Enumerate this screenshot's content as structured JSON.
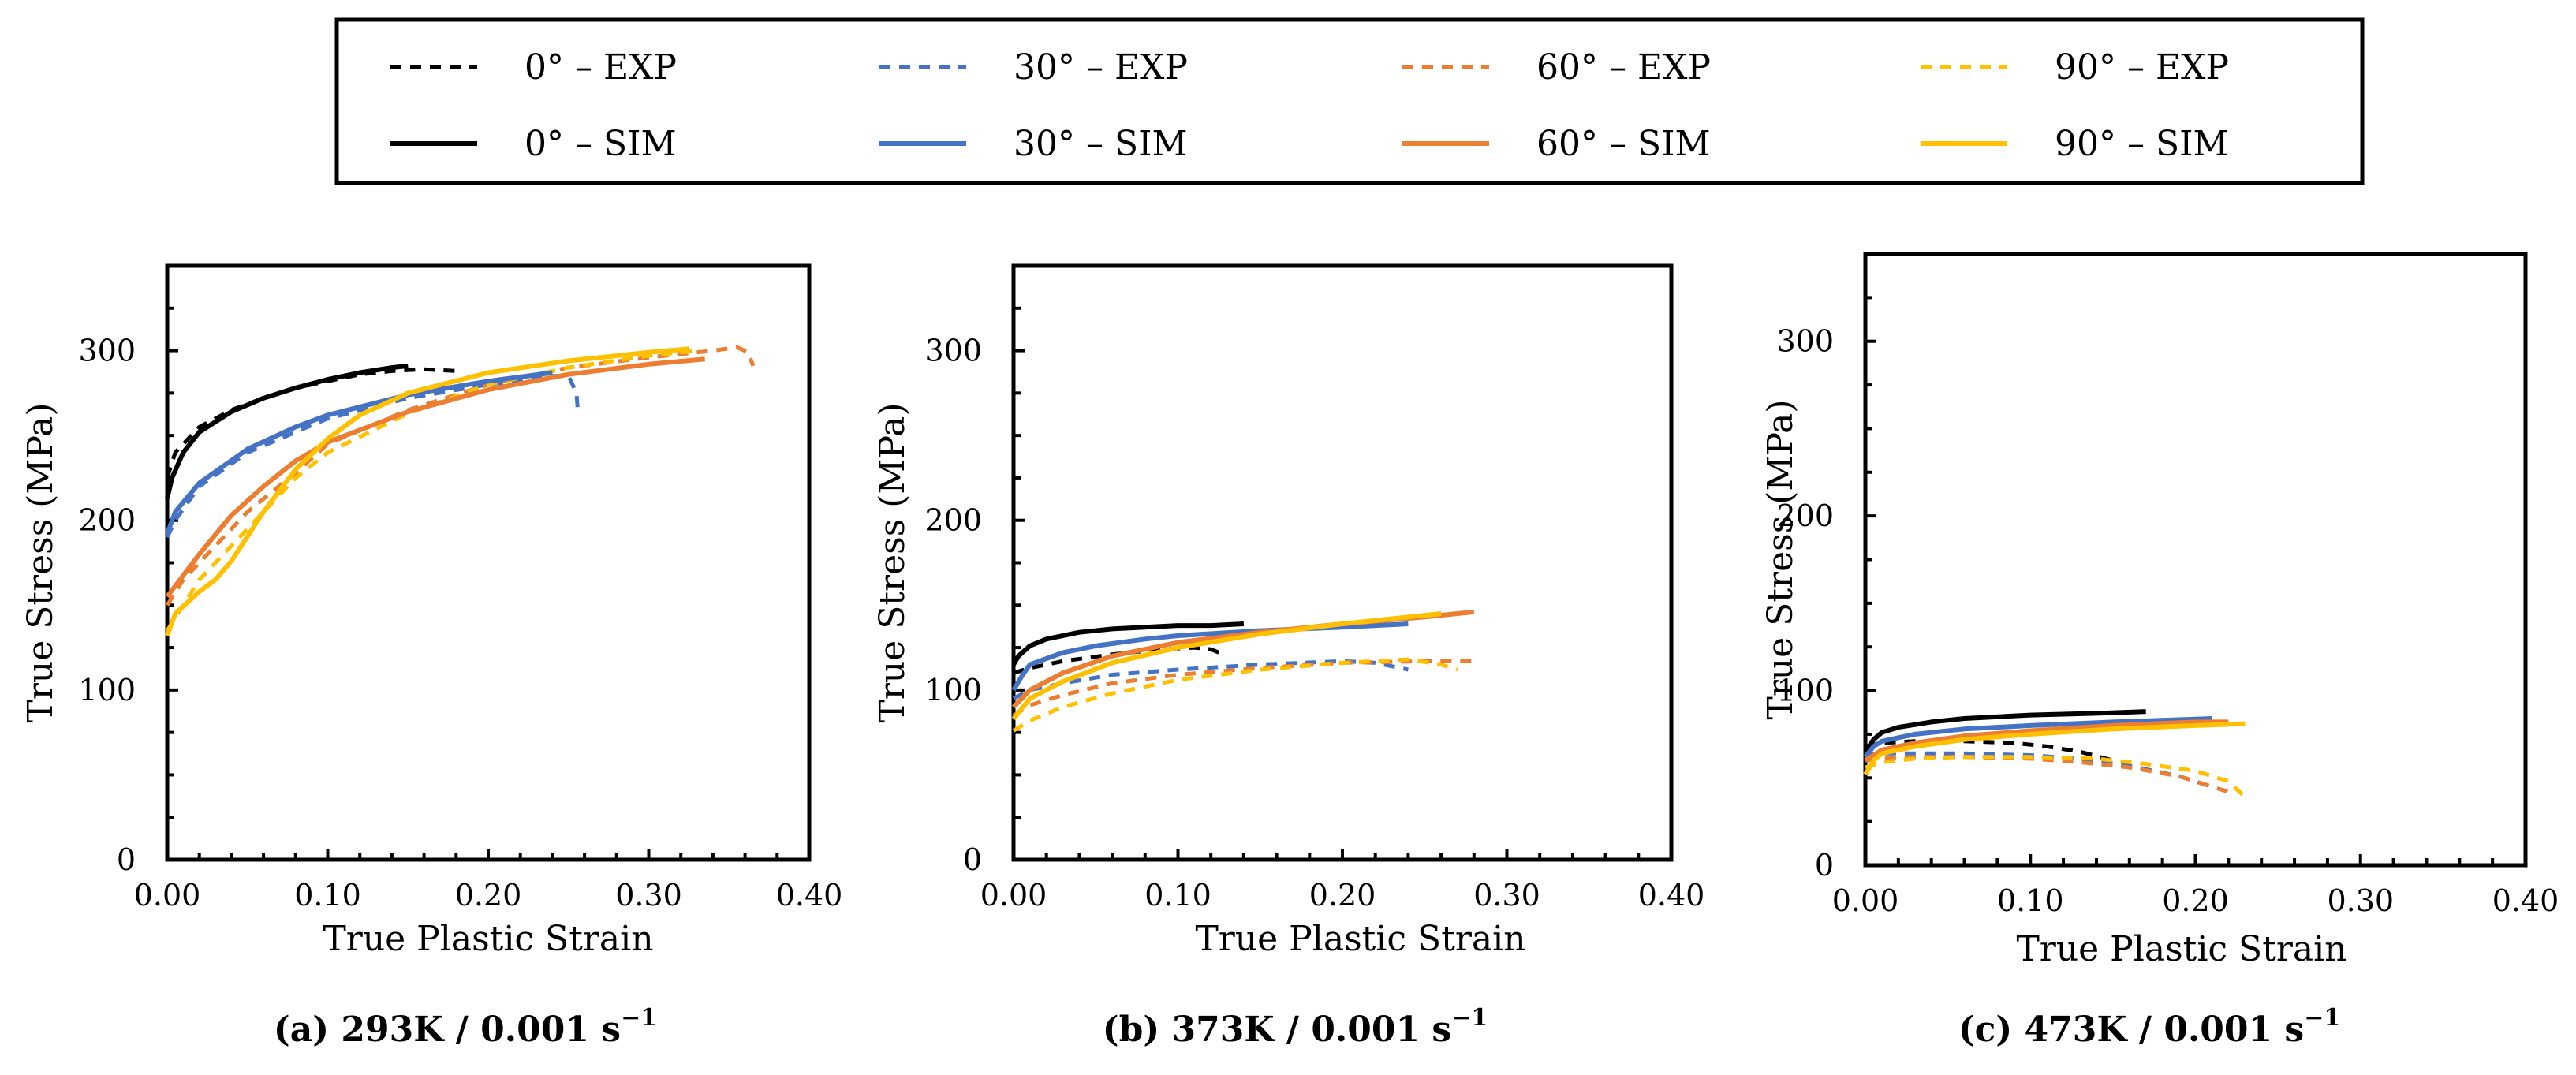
{
  "figure": {
    "legend": [
      {
        "label": "0° – EXP",
        "color": "#000000",
        "dash": true
      },
      {
        "label": "30° – EXP",
        "color": "#4472c4",
        "dash": true
      },
      {
        "label": "60° – EXP",
        "color": "#ed7d31",
        "dash": true
      },
      {
        "label": "90° – EXP",
        "color": "#ffc000",
        "dash": true
      },
      {
        "label": "0° – SIM",
        "color": "#000000",
        "dash": false
      },
      {
        "label": "30° – SIM",
        "color": "#4472c4",
        "dash": false
      },
      {
        "label": "60° – SIM",
        "color": "#ed7d31",
        "dash": false
      },
      {
        "label": "90° – SIM",
        "color": "#ffc000",
        "dash": false
      }
    ]
  },
  "chart_data": [
    {
      "type": "line",
      "caption": "(a) 293K / 0.001 s",
      "caption_sup": "−1",
      "xlabel": "True Plastic Strain",
      "ylabel": "True Stress (MPa)",
      "xlim": [
        0,
        0.4
      ],
      "ylim": [
        0,
        350
      ],
      "xticks": [
        "0.00",
        "0.10",
        "0.20",
        "0.30",
        "0.40"
      ],
      "yticks": [
        "0",
        "100",
        "200",
        "300"
      ],
      "series": [
        {
          "name": "0° – EXP",
          "color": "#000000",
          "dash": true,
          "x": [
            0,
            0.005,
            0.02,
            0.04,
            0.06,
            0.08,
            0.1,
            0.12,
            0.14,
            0.16,
            0.18
          ],
          "y": [
            225,
            240,
            255,
            265,
            272,
            278,
            282,
            286,
            288,
            289,
            288
          ]
        },
        {
          "name": "30° – EXP",
          "color": "#4472c4",
          "dash": true,
          "x": [
            0,
            0.005,
            0.02,
            0.05,
            0.08,
            0.1,
            0.15,
            0.2,
            0.24,
            0.25,
            0.255,
            0.256
          ],
          "y": [
            190,
            200,
            220,
            240,
            252,
            260,
            272,
            280,
            285,
            285,
            275,
            262
          ]
        },
        {
          "name": "60° – EXP",
          "color": "#ed7d31",
          "dash": true,
          "x": [
            0,
            0.01,
            0.03,
            0.05,
            0.08,
            0.1,
            0.15,
            0.2,
            0.25,
            0.3,
            0.34,
            0.355,
            0.362,
            0.365
          ],
          "y": [
            150,
            165,
            185,
            205,
            228,
            245,
            265,
            280,
            290,
            296,
            300,
            302,
            299,
            291
          ]
        },
        {
          "name": "90° – EXP",
          "color": "#ffc000",
          "dash": true,
          "x": [
            0,
            0.01,
            0.02,
            0.04,
            0.06,
            0.08,
            0.1,
            0.15,
            0.2,
            0.25,
            0.3,
            0.33
          ],
          "y": [
            135,
            150,
            165,
            185,
            205,
            225,
            240,
            263,
            280,
            290,
            297,
            300
          ]
        },
        {
          "name": "0° – SIM",
          "color": "#000000",
          "dash": false,
          "x": [
            0,
            0.003,
            0.01,
            0.02,
            0.04,
            0.06,
            0.08,
            0.1,
            0.12,
            0.14,
            0.15
          ],
          "y": [
            213,
            225,
            240,
            252,
            264,
            272,
            278,
            283,
            287,
            290,
            291
          ]
        },
        {
          "name": "30° – SIM",
          "color": "#4472c4",
          "dash": false,
          "x": [
            0,
            0.005,
            0.02,
            0.05,
            0.08,
            0.1,
            0.15,
            0.2,
            0.24
          ],
          "y": [
            192,
            205,
            222,
            242,
            255,
            262,
            274,
            282,
            287
          ]
        },
        {
          "name": "60° – SIM",
          "color": "#ed7d31",
          "dash": false,
          "x": [
            0,
            0.02,
            0.04,
            0.06,
            0.08,
            0.1,
            0.15,
            0.2,
            0.25,
            0.3,
            0.335
          ],
          "y": [
            155,
            180,
            203,
            220,
            235,
            246,
            264,
            277,
            286,
            292,
            295
          ]
        },
        {
          "name": "90° – SIM",
          "color": "#ffc000",
          "dash": false,
          "x": [
            0,
            0.005,
            0.02,
            0.03,
            0.04,
            0.06,
            0.08,
            0.1,
            0.12,
            0.15,
            0.2,
            0.25,
            0.3,
            0.325
          ],
          "y": [
            132,
            145,
            158,
            165,
            176,
            205,
            230,
            248,
            262,
            275,
            287,
            294,
            299,
            301
          ]
        }
      ]
    },
    {
      "type": "line",
      "caption": "(b) 373K / 0.001 s",
      "caption_sup": "−1",
      "xlabel": "True Plastic Strain",
      "ylabel": "True Stress (MPa)",
      "xlim": [
        0,
        0.4
      ],
      "ylim": [
        0,
        350
      ],
      "xticks": [
        "0.00",
        "0.10",
        "0.20",
        "0.30",
        "0.40"
      ],
      "yticks": [
        "0",
        "100",
        "200",
        "300"
      ],
      "series": [
        {
          "name": "0° – EXP",
          "color": "#000000",
          "dash": true,
          "x": [
            0,
            0.01,
            0.03,
            0.06,
            0.09,
            0.11,
            0.12,
            0.125
          ],
          "y": [
            110,
            113,
            117,
            121,
            124,
            125,
            124,
            122
          ]
        },
        {
          "name": "30° – EXP",
          "color": "#4472c4",
          "dash": true,
          "x": [
            0,
            0.01,
            0.03,
            0.06,
            0.1,
            0.15,
            0.2,
            0.22,
            0.24
          ],
          "y": [
            95,
            100,
            104,
            109,
            112,
            115,
            117,
            116,
            112
          ]
        },
        {
          "name": "60° – EXP",
          "color": "#ed7d31",
          "dash": true,
          "x": [
            0,
            0.01,
            0.03,
            0.06,
            0.1,
            0.15,
            0.2,
            0.25,
            0.28
          ],
          "y": [
            85,
            91,
            97,
            104,
            109,
            113,
            116,
            117,
            117
          ]
        },
        {
          "name": "90° – EXP",
          "color": "#ffc000",
          "dash": true,
          "x": [
            0,
            0.01,
            0.03,
            0.06,
            0.1,
            0.15,
            0.2,
            0.24,
            0.26,
            0.27
          ],
          "y": [
            76,
            82,
            90,
            98,
            106,
            112,
            116,
            118,
            115,
            112
          ]
        },
        {
          "name": "0° – SIM",
          "color": "#000000",
          "dash": false,
          "x": [
            0,
            0.003,
            0.01,
            0.02,
            0.04,
            0.06,
            0.08,
            0.1,
            0.12,
            0.14
          ],
          "y": [
            115,
            120,
            126,
            130,
            134,
            136,
            137,
            138,
            138,
            139
          ]
        },
        {
          "name": "30° – SIM",
          "color": "#4472c4",
          "dash": false,
          "x": [
            0,
            0.005,
            0.01,
            0.03,
            0.05,
            0.08,
            0.1,
            0.15,
            0.2,
            0.24
          ],
          "y": [
            100,
            108,
            115,
            122,
            126,
            130,
            132,
            135,
            137,
            139
          ]
        },
        {
          "name": "60° – SIM",
          "color": "#ed7d31",
          "dash": false,
          "x": [
            0,
            0.01,
            0.03,
            0.06,
            0.1,
            0.15,
            0.2,
            0.25,
            0.28
          ],
          "y": [
            90,
            100,
            110,
            120,
            128,
            134,
            139,
            143,
            146
          ]
        },
        {
          "name": "90° – SIM",
          "color": "#ffc000",
          "dash": false,
          "x": [
            0,
            0.01,
            0.03,
            0.06,
            0.1,
            0.15,
            0.2,
            0.26
          ],
          "y": [
            83,
            95,
            105,
            116,
            125,
            133,
            139,
            145
          ]
        }
      ]
    },
    {
      "type": "line",
      "caption": "(c) 473K / 0.001 s",
      "caption_sup": "−1",
      "xlabel": "True Plastic Strain",
      "ylabel": "True Stress (MPa)",
      "xlim": [
        0,
        0.4
      ],
      "ylim": [
        0,
        350
      ],
      "xticks": [
        "0.00",
        "0.10",
        "0.20",
        "0.30",
        "0.40"
      ],
      "yticks": [
        "0",
        "100",
        "200",
        "300"
      ],
      "series": [
        {
          "name": "0° – EXP",
          "color": "#000000",
          "dash": true,
          "x": [
            0,
            0.01,
            0.03,
            0.06,
            0.09,
            0.11,
            0.13,
            0.15
          ],
          "y": [
            68,
            70,
            71,
            71,
            70,
            68,
            65,
            60
          ]
        },
        {
          "name": "30° – EXP",
          "color": "#4472c4",
          "dash": true,
          "x": [
            0,
            0.01,
            0.03,
            0.06,
            0.1,
            0.13,
            0.16,
            0.19,
            0.21
          ],
          "y": [
            63,
            64,
            64,
            64,
            63,
            61,
            57,
            51,
            45
          ]
        },
        {
          "name": "60° – EXP",
          "color": "#ed7d31",
          "dash": true,
          "x": [
            0,
            0.01,
            0.03,
            0.06,
            0.1,
            0.13,
            0.16,
            0.19,
            0.22
          ],
          "y": [
            60,
            61,
            62,
            62,
            61,
            59,
            56,
            51,
            42
          ]
        },
        {
          "name": "90° – EXP",
          "color": "#ffc000",
          "dash": true,
          "x": [
            0,
            0.01,
            0.03,
            0.06,
            0.1,
            0.14,
            0.17,
            0.2,
            0.22,
            0.23
          ],
          "y": [
            56,
            59,
            61,
            62,
            62,
            61,
            58,
            54,
            48,
            39
          ]
        },
        {
          "name": "0° – SIM",
          "color": "#000000",
          "dash": false,
          "x": [
            0,
            0.005,
            0.01,
            0.02,
            0.04,
            0.06,
            0.1,
            0.14,
            0.17
          ],
          "y": [
            65,
            72,
            76,
            79,
            82,
            84,
            86,
            87,
            88
          ]
        },
        {
          "name": "30° – SIM",
          "color": "#4472c4",
          "dash": false,
          "x": [
            0,
            0.005,
            0.01,
            0.03,
            0.06,
            0.1,
            0.15,
            0.21
          ],
          "y": [
            62,
            68,
            71,
            75,
            78,
            80,
            82,
            84
          ]
        },
        {
          "name": "60° – SIM",
          "color": "#ed7d31",
          "dash": false,
          "x": [
            0,
            0.01,
            0.03,
            0.06,
            0.1,
            0.15,
            0.2,
            0.22
          ],
          "y": [
            60,
            66,
            70,
            74,
            77,
            80,
            82,
            82
          ]
        },
        {
          "name": "90° – SIM",
          "color": "#ffc000",
          "dash": false,
          "x": [
            0,
            0.005,
            0.01,
            0.03,
            0.06,
            0.1,
            0.15,
            0.2,
            0.23
          ],
          "y": [
            52,
            60,
            64,
            68,
            72,
            75,
            78,
            80,
            81
          ]
        }
      ]
    }
  ]
}
